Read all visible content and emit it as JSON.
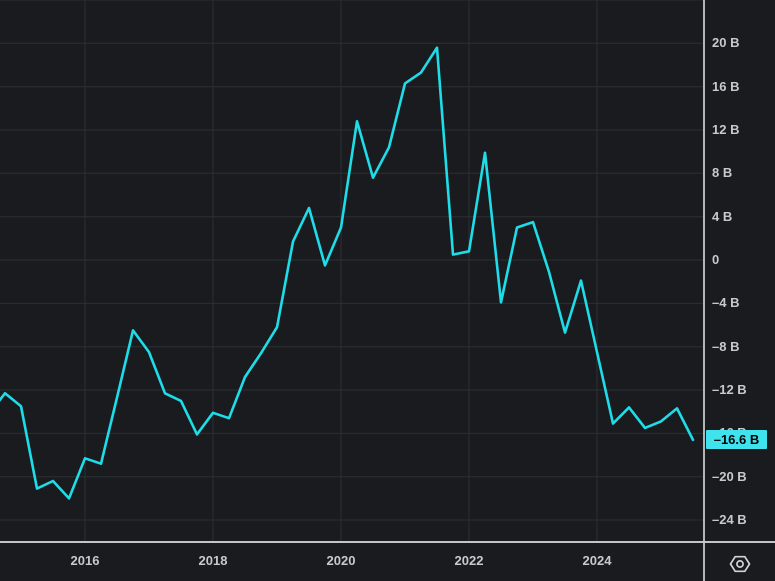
{
  "chart_data": {
    "type": "line",
    "title": "",
    "xlabel": "",
    "ylabel": "",
    "unit": "B",
    "grid": true,
    "legend": false,
    "xlim_decimal_years": [
      2014.672,
      2025.688
    ],
    "ylim": [
      -26.12,
      24
    ],
    "y_gridline_values": [
      24,
      20,
      16,
      12,
      8,
      4,
      0,
      -4,
      -8,
      -12,
      -16,
      -20,
      -24
    ],
    "x_gridline_years": [
      2016,
      2018,
      2020,
      2022,
      2024
    ],
    "last_value": -16.6,
    "series": [
      {
        "name": "value",
        "color": "#1edce8",
        "points": [
          [
            "2014-07",
            -14.2
          ],
          [
            "2014-10",
            -12.3
          ],
          [
            "2015-01",
            -13.5
          ],
          [
            "2015-04",
            -21.1
          ],
          [
            "2015-07",
            -20.4
          ],
          [
            "2015-10",
            -22.0
          ],
          [
            "2016-01",
            -18.3
          ],
          [
            "2016-04",
            -18.8
          ],
          [
            "2016-07",
            -12.7
          ],
          [
            "2016-10",
            -6.5
          ],
          [
            "2017-01",
            -8.5
          ],
          [
            "2017-04",
            -12.3
          ],
          [
            "2017-07",
            -13.0
          ],
          [
            "2017-10",
            -16.1
          ],
          [
            "2018-01",
            -14.1
          ],
          [
            "2018-04",
            -14.6
          ],
          [
            "2018-07",
            -10.8
          ],
          [
            "2018-10",
            -8.6
          ],
          [
            "2019-01",
            -6.2
          ],
          [
            "2019-04",
            1.7
          ],
          [
            "2019-07",
            4.8
          ],
          [
            "2019-10",
            -0.5
          ],
          [
            "2020-01",
            3.0
          ],
          [
            "2020-04",
            12.8
          ],
          [
            "2020-07",
            7.6
          ],
          [
            "2020-10",
            10.4
          ],
          [
            "2021-01",
            16.3
          ],
          [
            "2021-04",
            17.3
          ],
          [
            "2021-07",
            19.6
          ],
          [
            "2021-10",
            0.5
          ],
          [
            "2022-01",
            0.8
          ],
          [
            "2022-04",
            9.9
          ],
          [
            "2022-07",
            -3.9
          ],
          [
            "2022-10",
            3.0
          ],
          [
            "2023-01",
            3.5
          ],
          [
            "2023-04",
            -1.1
          ],
          [
            "2023-07",
            -6.7
          ],
          [
            "2023-10",
            -1.9
          ],
          [
            "2024-01",
            -8.5
          ],
          [
            "2024-04",
            -15.1
          ],
          [
            "2024-07",
            -13.6
          ],
          [
            "2024-10",
            -15.5
          ],
          [
            "2025-01",
            -14.9
          ],
          [
            "2025-04",
            -13.7
          ],
          [
            "2025-07",
            -16.6
          ]
        ]
      }
    ]
  },
  "y_axis": {
    "tick_labels": [
      {
        "text": "20 B",
        "value": 20
      },
      {
        "text": "16 B",
        "value": 16
      },
      {
        "text": "12 B",
        "value": 12
      },
      {
        "text": "8 B",
        "value": 8
      },
      {
        "text": "4 B",
        "value": 4
      },
      {
        "text": "0",
        "value": 0
      },
      {
        "text": "–4 B",
        "value": -4
      },
      {
        "text": "–8 B",
        "value": -8
      },
      {
        "text": "–12 B",
        "value": -12
      },
      {
        "text": "–16 B",
        "value": -16
      },
      {
        "text": "–20 B",
        "value": -20
      },
      {
        "text": "–24 B",
        "value": -24
      }
    ]
  },
  "x_axis": {
    "tick_labels": [
      {
        "text": "2016",
        "year": 2016
      },
      {
        "text": "2018",
        "year": 2018
      },
      {
        "text": "2020",
        "year": 2020
      },
      {
        "text": "2022",
        "year": 2022
      },
      {
        "text": "2024",
        "year": 2024
      }
    ]
  },
  "badge": {
    "text": "–16.6 B",
    "value": -16.6,
    "bg": "#3ee3ed",
    "fg": "#000000"
  },
  "icons": {
    "settings": "hex-nut-settings-icon"
  },
  "colors": {
    "background": "#191b1e",
    "gridline": "#2c2f34",
    "axis_line": "#b3b6b9",
    "line": "#1edce8",
    "tick_label": "#c7c9cb"
  }
}
